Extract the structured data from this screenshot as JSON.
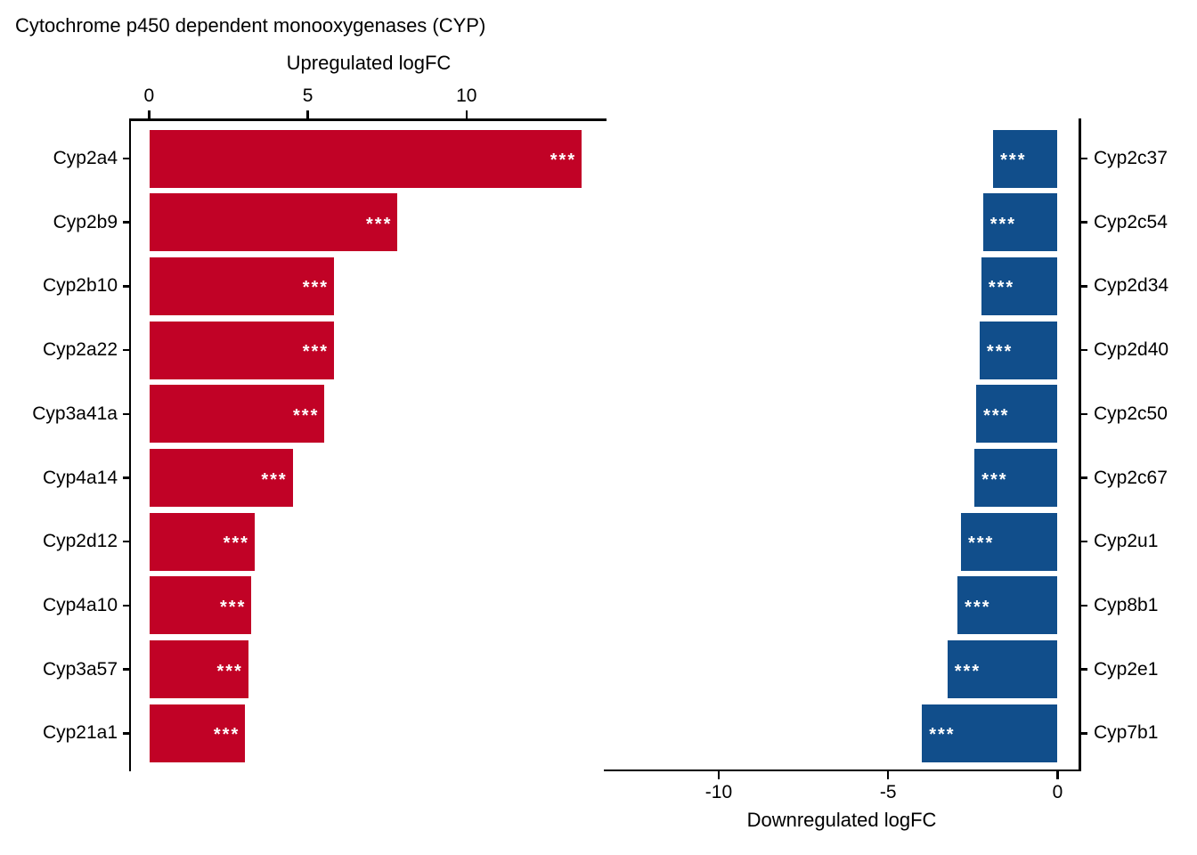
{
  "title": "Cytochrome p450 dependent monooxygenases (CYP)",
  "colors": {
    "upregulated_bar": "#C10226",
    "downregulated_bar": "#114E8B",
    "axis": "#000000",
    "significance_text": "#FFFFFF",
    "background": "#FFFFFF"
  },
  "chart_data": [
    {
      "type": "bar",
      "orientation": "horizontal",
      "panel": "upregulated",
      "xlabel": "Upregulated logFC",
      "axis_position": "top",
      "gene_axis_side": "left",
      "grid": false,
      "xlim": [
        -0.57,
        14.41
      ],
      "xticks": [
        {
          "value": 0,
          "label": "0"
        },
        {
          "value": 5,
          "label": "5"
        },
        {
          "value": 10,
          "label": "10"
        }
      ],
      "bars": [
        {
          "gene": "Cyp2a4",
          "logFC": 13.6,
          "sig": "***"
        },
        {
          "gene": "Cyp2b9",
          "logFC": 7.8,
          "sig": "***"
        },
        {
          "gene": "Cyp2b10",
          "logFC": 5.8,
          "sig": "***"
        },
        {
          "gene": "Cyp2a22",
          "logFC": 5.8,
          "sig": "***"
        },
        {
          "gene": "Cyp3a41a",
          "logFC": 5.5,
          "sig": "***"
        },
        {
          "gene": "Cyp4a14",
          "logFC": 4.5,
          "sig": "***"
        },
        {
          "gene": "Cyp2d12",
          "logFC": 3.3,
          "sig": "***"
        },
        {
          "gene": "Cyp4a10",
          "logFC": 3.2,
          "sig": "***"
        },
        {
          "gene": "Cyp3a57",
          "logFC": 3.1,
          "sig": "***"
        },
        {
          "gene": "Cyp21a1",
          "logFC": 3.0,
          "sig": "***"
        }
      ]
    },
    {
      "type": "bar",
      "orientation": "horizontal",
      "panel": "downregulated",
      "xlabel": "Downregulated logFC",
      "axis_position": "bottom",
      "gene_axis_side": "right",
      "grid": false,
      "xlim": [
        -13.39,
        0.62
      ],
      "xticks": [
        {
          "value": -10,
          "label": "-10"
        },
        {
          "value": -5,
          "label": "-5"
        },
        {
          "value": 0,
          "label": "0"
        }
      ],
      "bars": [
        {
          "gene": "Cyp2c37",
          "logFC": -1.9,
          "sig": "***"
        },
        {
          "gene": "Cyp2c54",
          "logFC": -2.2,
          "sig": "***"
        },
        {
          "gene": "Cyp2d34",
          "logFC": -2.25,
          "sig": "***"
        },
        {
          "gene": "Cyp2d40",
          "logFC": -2.3,
          "sig": "***"
        },
        {
          "gene": "Cyp2c50",
          "logFC": -2.4,
          "sig": "***"
        },
        {
          "gene": "Cyp2c67",
          "logFC": -2.45,
          "sig": "***"
        },
        {
          "gene": "Cyp2u1",
          "logFC": -2.85,
          "sig": "***"
        },
        {
          "gene": "Cyp8b1",
          "logFC": -2.95,
          "sig": "***"
        },
        {
          "gene": "Cyp2e1",
          "logFC": -3.25,
          "sig": "***"
        },
        {
          "gene": "Cyp7b1",
          "logFC": -4.0,
          "sig": "***"
        }
      ]
    }
  ]
}
